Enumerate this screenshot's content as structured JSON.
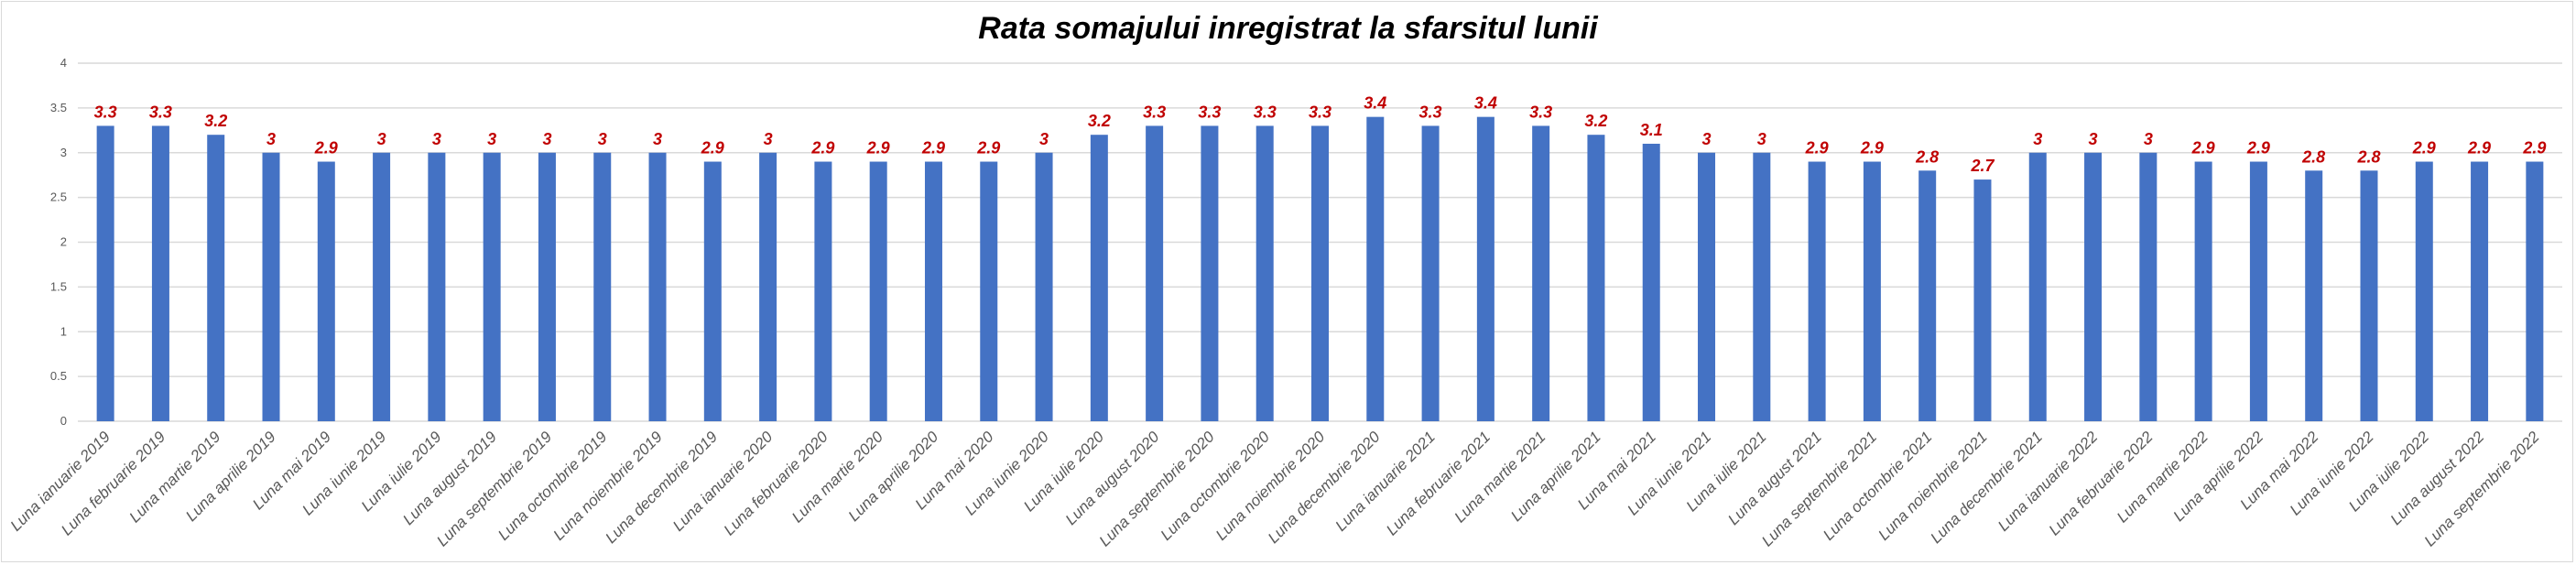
{
  "chart_data": {
    "type": "bar",
    "title": "Rata somajului inregistrat la sfarsitul lunii",
    "xlabel": "",
    "ylabel": "",
    "ylim": [
      0,
      4
    ],
    "yticks": [
      0,
      0.5,
      1,
      1.5,
      2,
      2.5,
      3,
      3.5,
      4
    ],
    "grid": true,
    "legend": "none",
    "bar_color": "#4472c4",
    "label_color": "#c00000",
    "categories": [
      "Luna ianuarie 2019",
      "Luna februarie 2019",
      "Luna martie 2019",
      "Luna aprilie 2019",
      "Luna mai 2019",
      "Luna iunie 2019",
      "Luna iulie 2019",
      "Luna august 2019",
      "Luna septembrie 2019",
      "Luna octombrie 2019",
      "Luna noiembrie 2019",
      "Luna decembrie 2019",
      "Luna ianuarie 2020",
      "Luna februarie 2020",
      "Luna martie 2020",
      "Luna aprilie 2020",
      "Luna mai 2020",
      "Luna iunie 2020",
      "Luna iulie 2020",
      "Luna august 2020",
      "Luna septembrie 2020",
      "Luna octombrie 2020",
      "Luna noiembrie 2020",
      "Luna decembrie 2020",
      "Luna ianuarie 2021",
      "Luna februarie 2021",
      "Luna martie 2021",
      "Luna aprilie 2021",
      "Luna mai 2021",
      "Luna iunie 2021",
      "Luna iulie 2021",
      "Luna august 2021",
      "Luna septembrie 2021",
      "Luna octombrie 2021",
      "Luna noiembrie 2021",
      "Luna decembrie 2021",
      "Luna ianuarie 2022",
      "Luna februarie 2022",
      "Luna martie 2022",
      "Luna aprilie 2022",
      "Luna mai 2022",
      "Luna iunie 2022",
      "Luna iulie 2022",
      "Luna august 2022",
      "Luna septembrie 2022"
    ],
    "values": [
      3.3,
      3.3,
      3.2,
      3,
      2.9,
      3,
      3,
      3,
      3,
      3,
      3,
      2.9,
      3,
      2.9,
      2.9,
      2.9,
      2.9,
      3,
      3.2,
      3.3,
      3.3,
      3.3,
      3.3,
      3.4,
      3.3,
      3.4,
      3.3,
      3.2,
      3.1,
      3,
      3,
      2.9,
      2.9,
      2.8,
      2.7,
      3,
      3,
      3,
      2.9,
      2.9,
      2.8,
      2.8,
      2.9,
      2.9,
      2.9
    ]
  }
}
